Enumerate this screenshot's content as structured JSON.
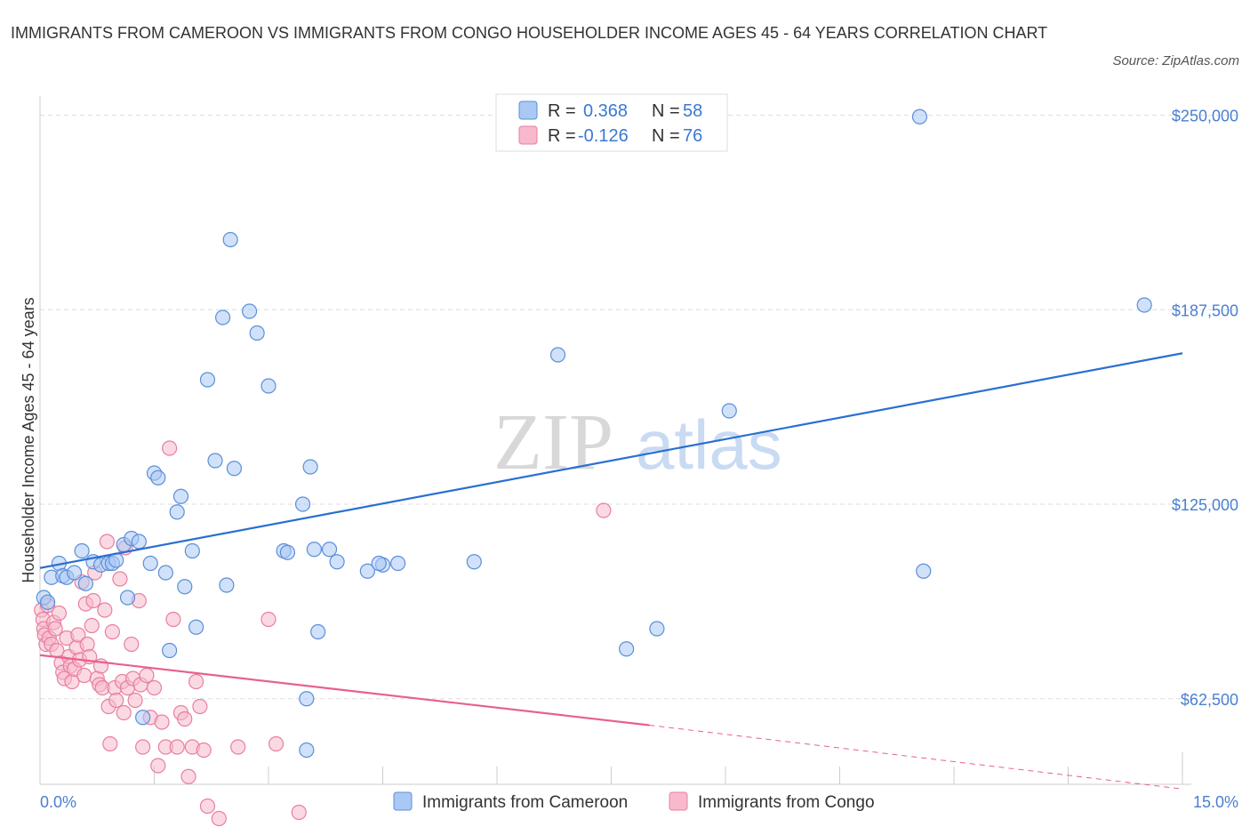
{
  "title": "IMMIGRANTS FROM CAMEROON VS IMMIGRANTS FROM CONGO HOUSEHOLDER INCOME AGES 45 - 64 YEARS CORRELATION CHART",
  "source": "Source: ZipAtlas.com",
  "watermark": {
    "zip": "ZIP",
    "atlas": "atlas"
  },
  "legend_top": [
    {
      "r_label": "R =",
      "r_value": "0.368",
      "n_label": "N =",
      "n_value": "58"
    },
    {
      "r_label": "R =",
      "r_value": "-0.126",
      "n_label": "N =",
      "n_value": "76"
    }
  ],
  "legend_bottom": [
    "Immigrants from Cameroon",
    "Immigrants from Congo"
  ],
  "colors": {
    "cameroon_fill": "#aac8f4",
    "cameroon_stroke": "#5b8fd8",
    "cameroon_line": "#2a6fd0",
    "congo_fill": "#f8b9cc",
    "congo_stroke": "#e87fa0",
    "congo_line": "#e8608e",
    "grid": "#dddddd",
    "tick_text": "#4a7fd0"
  },
  "chart_data": {
    "type": "scatter",
    "title": "IMMIGRANTS FROM CAMEROON VS IMMIGRANTS FROM CONGO HOUSEHOLDER INCOME AGES 45 - 64 YEARS CORRELATION CHART",
    "xlabel": "",
    "ylabel": "Householder Income Ages 45 - 64 years",
    "xlim": [
      0,
      15
    ],
    "ylim": [
      35000,
      255000
    ],
    "x_tick_labels": [
      "0.0%",
      "15.0%"
    ],
    "y_ticks": [
      62500,
      125000,
      187500,
      250000
    ],
    "y_tick_labels": [
      "$62,500",
      "$125,000",
      "$187,500",
      "$250,000"
    ],
    "series": [
      {
        "name": "Immigrants from Cameroon",
        "R": 0.368,
        "N": 58,
        "trend": {
          "x": [
            0,
            15
          ],
          "y": [
            104500,
            173500
          ]
        },
        "points": [
          [
            0.05,
            95000
          ],
          [
            0.1,
            93500
          ],
          [
            0.15,
            101500
          ],
          [
            0.25,
            106000
          ],
          [
            0.3,
            102000
          ],
          [
            0.35,
            101500
          ],
          [
            0.45,
            103000
          ],
          [
            0.55,
            110000
          ],
          [
            0.6,
            99500
          ],
          [
            0.7,
            106500
          ],
          [
            0.8,
            105500
          ],
          [
            0.9,
            106000
          ],
          [
            0.95,
            106000
          ],
          [
            1.0,
            107000
          ],
          [
            1.1,
            112000
          ],
          [
            1.15,
            95000
          ],
          [
            1.2,
            114000
          ],
          [
            1.3,
            113000
          ],
          [
            1.45,
            106000
          ],
          [
            1.5,
            135000
          ],
          [
            1.55,
            133500
          ],
          [
            1.65,
            103000
          ],
          [
            1.7,
            78000
          ],
          [
            1.8,
            122500
          ],
          [
            1.85,
            127500
          ],
          [
            1.9,
            98500
          ],
          [
            2.0,
            110000
          ],
          [
            2.05,
            85500
          ],
          [
            2.2,
            165000
          ],
          [
            2.3,
            139000
          ],
          [
            2.45,
            99000
          ],
          [
            2.5,
            210000
          ],
          [
            2.55,
            136500
          ],
          [
            2.4,
            185000
          ],
          [
            2.75,
            187000
          ],
          [
            2.85,
            180000
          ],
          [
            3.0,
            163000
          ],
          [
            3.2,
            110000
          ],
          [
            3.25,
            109500
          ],
          [
            3.45,
            125000
          ],
          [
            3.55,
            137000
          ],
          [
            3.6,
            110500
          ],
          [
            3.65,
            84000
          ],
          [
            3.8,
            110500
          ],
          [
            3.9,
            106500
          ],
          [
            4.3,
            103500
          ],
          [
            4.5,
            105500
          ],
          [
            4.45,
            106000
          ],
          [
            4.7,
            106000
          ],
          [
            1.35,
            56500
          ],
          [
            3.5,
            46000
          ],
          [
            3.5,
            62500
          ],
          [
            5.7,
            106500
          ],
          [
            6.8,
            173000
          ],
          [
            7.7,
            78500
          ],
          [
            8.1,
            85000
          ],
          [
            9.05,
            155000
          ],
          [
            11.6,
            103500
          ],
          [
            11.55,
            249500
          ],
          [
            14.5,
            189000
          ]
        ]
      },
      {
        "name": "Immigrants from Congo",
        "R": -0.126,
        "N": 76,
        "trend": {
          "x": [
            0,
            8
          ],
          "y": [
            76500,
            54000
          ]
        },
        "trend_dashed": {
          "x": [
            8,
            15
          ],
          "y": [
            54000,
            33500
          ]
        },
        "points": [
          [
            0.02,
            91000
          ],
          [
            0.04,
            88000
          ],
          [
            0.05,
            85000
          ],
          [
            0.06,
            83000
          ],
          [
            0.08,
            80000
          ],
          [
            0.1,
            92500
          ],
          [
            0.12,
            82000
          ],
          [
            0.15,
            80000
          ],
          [
            0.18,
            87000
          ],
          [
            0.2,
            85000
          ],
          [
            0.22,
            78000
          ],
          [
            0.25,
            90000
          ],
          [
            0.28,
            74000
          ],
          [
            0.3,
            71000
          ],
          [
            0.32,
            69000
          ],
          [
            0.35,
            82000
          ],
          [
            0.38,
            76000
          ],
          [
            0.4,
            73000
          ],
          [
            0.42,
            68000
          ],
          [
            0.45,
            72000
          ],
          [
            0.48,
            79000
          ],
          [
            0.5,
            83000
          ],
          [
            0.52,
            75000
          ],
          [
            0.55,
            100000
          ],
          [
            0.58,
            70000
          ],
          [
            0.6,
            93000
          ],
          [
            0.62,
            80000
          ],
          [
            0.65,
            76000
          ],
          [
            0.68,
            86000
          ],
          [
            0.7,
            94000
          ],
          [
            0.72,
            103000
          ],
          [
            0.75,
            69000
          ],
          [
            0.78,
            67000
          ],
          [
            0.8,
            73000
          ],
          [
            0.82,
            66000
          ],
          [
            0.85,
            91000
          ],
          [
            0.88,
            113000
          ],
          [
            0.9,
            60000
          ],
          [
            0.92,
            48000
          ],
          [
            0.95,
            84000
          ],
          [
            0.98,
            66000
          ],
          [
            1.0,
            62000
          ],
          [
            1.05,
            101000
          ],
          [
            1.08,
            68000
          ],
          [
            1.1,
            58000
          ],
          [
            1.12,
            111000
          ],
          [
            1.15,
            66000
          ],
          [
            1.2,
            80000
          ],
          [
            1.22,
            69000
          ],
          [
            1.25,
            62000
          ],
          [
            1.3,
            94000
          ],
          [
            1.32,
            67000
          ],
          [
            1.35,
            47000
          ],
          [
            1.4,
            70000
          ],
          [
            1.45,
            56500
          ],
          [
            1.5,
            66000
          ],
          [
            1.55,
            41000
          ],
          [
            1.6,
            55000
          ],
          [
            1.65,
            47000
          ],
          [
            1.7,
            143000
          ],
          [
            1.75,
            88000
          ],
          [
            1.8,
            47000
          ],
          [
            1.85,
            58000
          ],
          [
            1.9,
            56000
          ],
          [
            1.95,
            37500
          ],
          [
            2.0,
            47000
          ],
          [
            2.05,
            68000
          ],
          [
            2.1,
            60000
          ],
          [
            2.15,
            46000
          ],
          [
            2.2,
            28000
          ],
          [
            2.35,
            24000
          ],
          [
            2.6,
            47000
          ],
          [
            3.0,
            88000
          ],
          [
            3.1,
            48000
          ],
          [
            3.4,
            26000
          ],
          [
            7.4,
            123000
          ]
        ]
      }
    ]
  }
}
